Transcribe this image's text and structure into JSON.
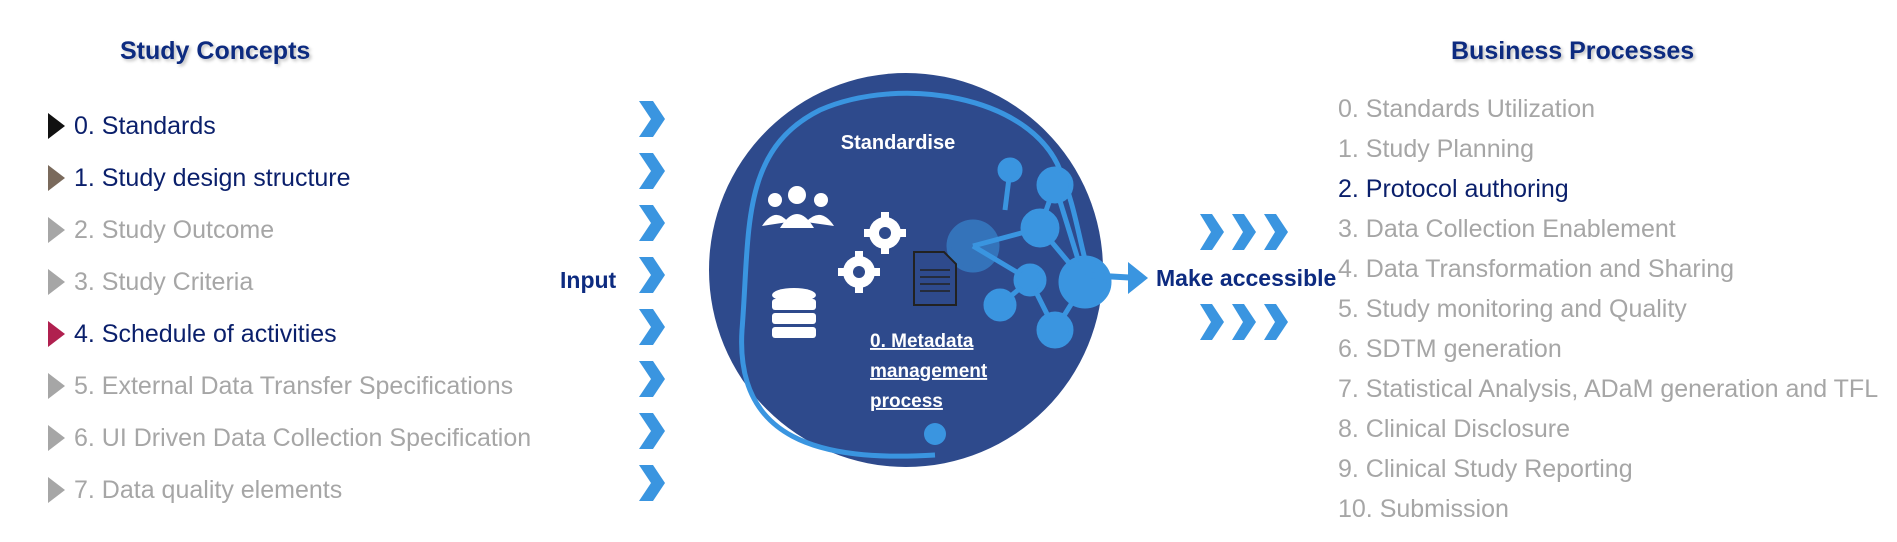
{
  "headings": {
    "left": "Study Concepts",
    "right": "Business Processes"
  },
  "study_concepts": [
    {
      "label": "0. Standards",
      "active": true,
      "marker_color": "#111111"
    },
    {
      "label": "1. Study design structure",
      "active": true,
      "marker_color": "#7a6a5c"
    },
    {
      "label": "2. Study Outcome",
      "active": false,
      "marker_color": "#a6a6a6"
    },
    {
      "label": "3. Study Criteria",
      "active": false,
      "marker_color": "#a6a6a6"
    },
    {
      "label": "4. Schedule of activities",
      "active": true,
      "marker_color": "#b0204f"
    },
    {
      "label": "5. External Data Transfer Specifications",
      "active": false,
      "marker_color": "#a6a6a6"
    },
    {
      "label": "6. UI Driven Data Collection Specification",
      "active": false,
      "marker_color": "#a6a6a6"
    },
    {
      "label": "7. Data quality elements",
      "active": false,
      "marker_color": "#a6a6a6"
    }
  ],
  "flow": {
    "input_label": "Input",
    "output_label": "Make accessible"
  },
  "hub": {
    "title": "Standardise",
    "process_label_lines": [
      "0. Metadata",
      "management",
      "process"
    ],
    "icons": [
      "people-icon",
      "gears-icon",
      "database-icon",
      "document-icon",
      "network-icon"
    ]
  },
  "business_processes": [
    {
      "label": "0. Standards Utilization",
      "active": false
    },
    {
      "label": "1. Study Planning",
      "active": false
    },
    {
      "label": "2. Protocol authoring",
      "active": true
    },
    {
      "label": "3. Data Collection Enablement",
      "active": false
    },
    {
      "label": "4. Data Transformation and Sharing",
      "active": false
    },
    {
      "label": "5. Study monitoring and Quality",
      "active": false
    },
    {
      "label": "6. SDTM generation",
      "active": false
    },
    {
      "label": "7. Statistical Analysis, ADaM generation and TFL",
      "active": false
    },
    {
      "label": "8. Clinical Disclosure",
      "active": false
    },
    {
      "label": "9. Clinical Study Reporting",
      "active": false
    },
    {
      "label": "10. Submission",
      "active": false
    }
  ],
  "colors": {
    "heading": "#0d2b80",
    "active_text": "#0a1f6b",
    "inactive_text": "#a6a6a6",
    "hub_fill": "#2e4a8c",
    "accent_blue": "#3a95e0"
  }
}
